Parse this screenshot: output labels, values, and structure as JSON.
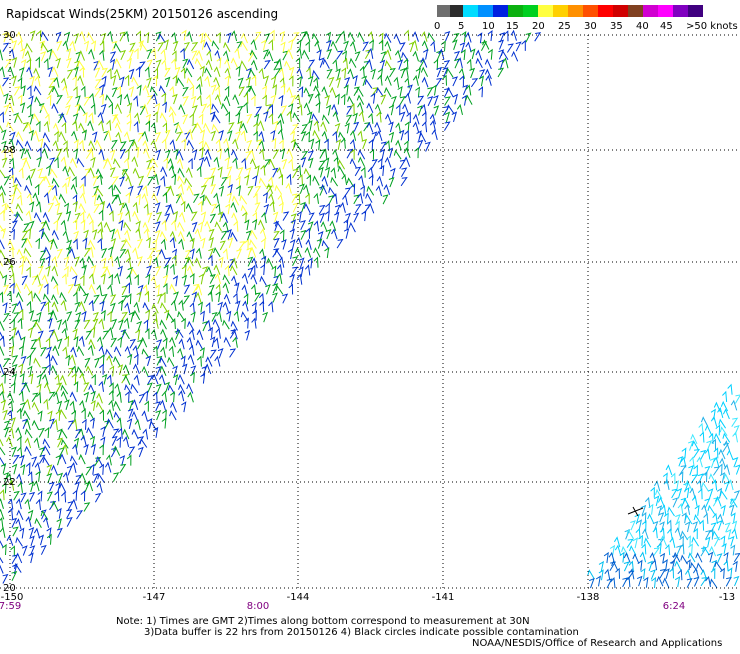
{
  "title": "Rapidscat Winds(25KM) 20150126 ascending",
  "legend": {
    "labels": [
      "0",
      "5",
      "10",
      "15",
      "20",
      "25",
      "30",
      "35",
      "40",
      "45",
      ">50 knots"
    ],
    "colors": [
      "#6e6e6e",
      "#2c2c2c",
      "#00dcff",
      "#0090ff",
      "#0020e0",
      "#0bb010",
      "#00d020",
      "#ffff40",
      "#ffd000",
      "#ff9000",
      "#ff5000",
      "#ff0000",
      "#d00000",
      "#804020",
      "#d000d0",
      "#ff00ff",
      "#8000c0",
      "#400080"
    ]
  },
  "axes": {
    "lat_labels": [
      "30",
      "28",
      "26",
      "24",
      "22",
      "20"
    ],
    "lon_labels": [
      "-150",
      "-147",
      "-144",
      "-141",
      "-138",
      "-13"
    ],
    "time_labels": [
      "7:59",
      "8:00",
      "6:24"
    ]
  },
  "notes": {
    "line1": "Note: 1) Times are GMT 2)Times along bottom correspond to measurement at 30N",
    "line2": "3)Data buffer is 22 hrs from 20150126 4) Black circles indicate possible contamination",
    "credit": "NOAA/NESDIS/Office of Research and Applications"
  },
  "map": {
    "lat_range": [
      20,
      30
    ],
    "lon_range": [
      -150,
      -135
    ],
    "grid": true,
    "swaths": [
      {
        "name": "west",
        "colors": [
          "#0030d0",
          "#00a020",
          "#80d000",
          "#ffff40",
          "#2040ff"
        ]
      },
      {
        "name": "east",
        "colors": [
          "#00d0ff",
          "#00b0e8",
          "#20e0ff",
          "#0080e0"
        ]
      }
    ]
  }
}
